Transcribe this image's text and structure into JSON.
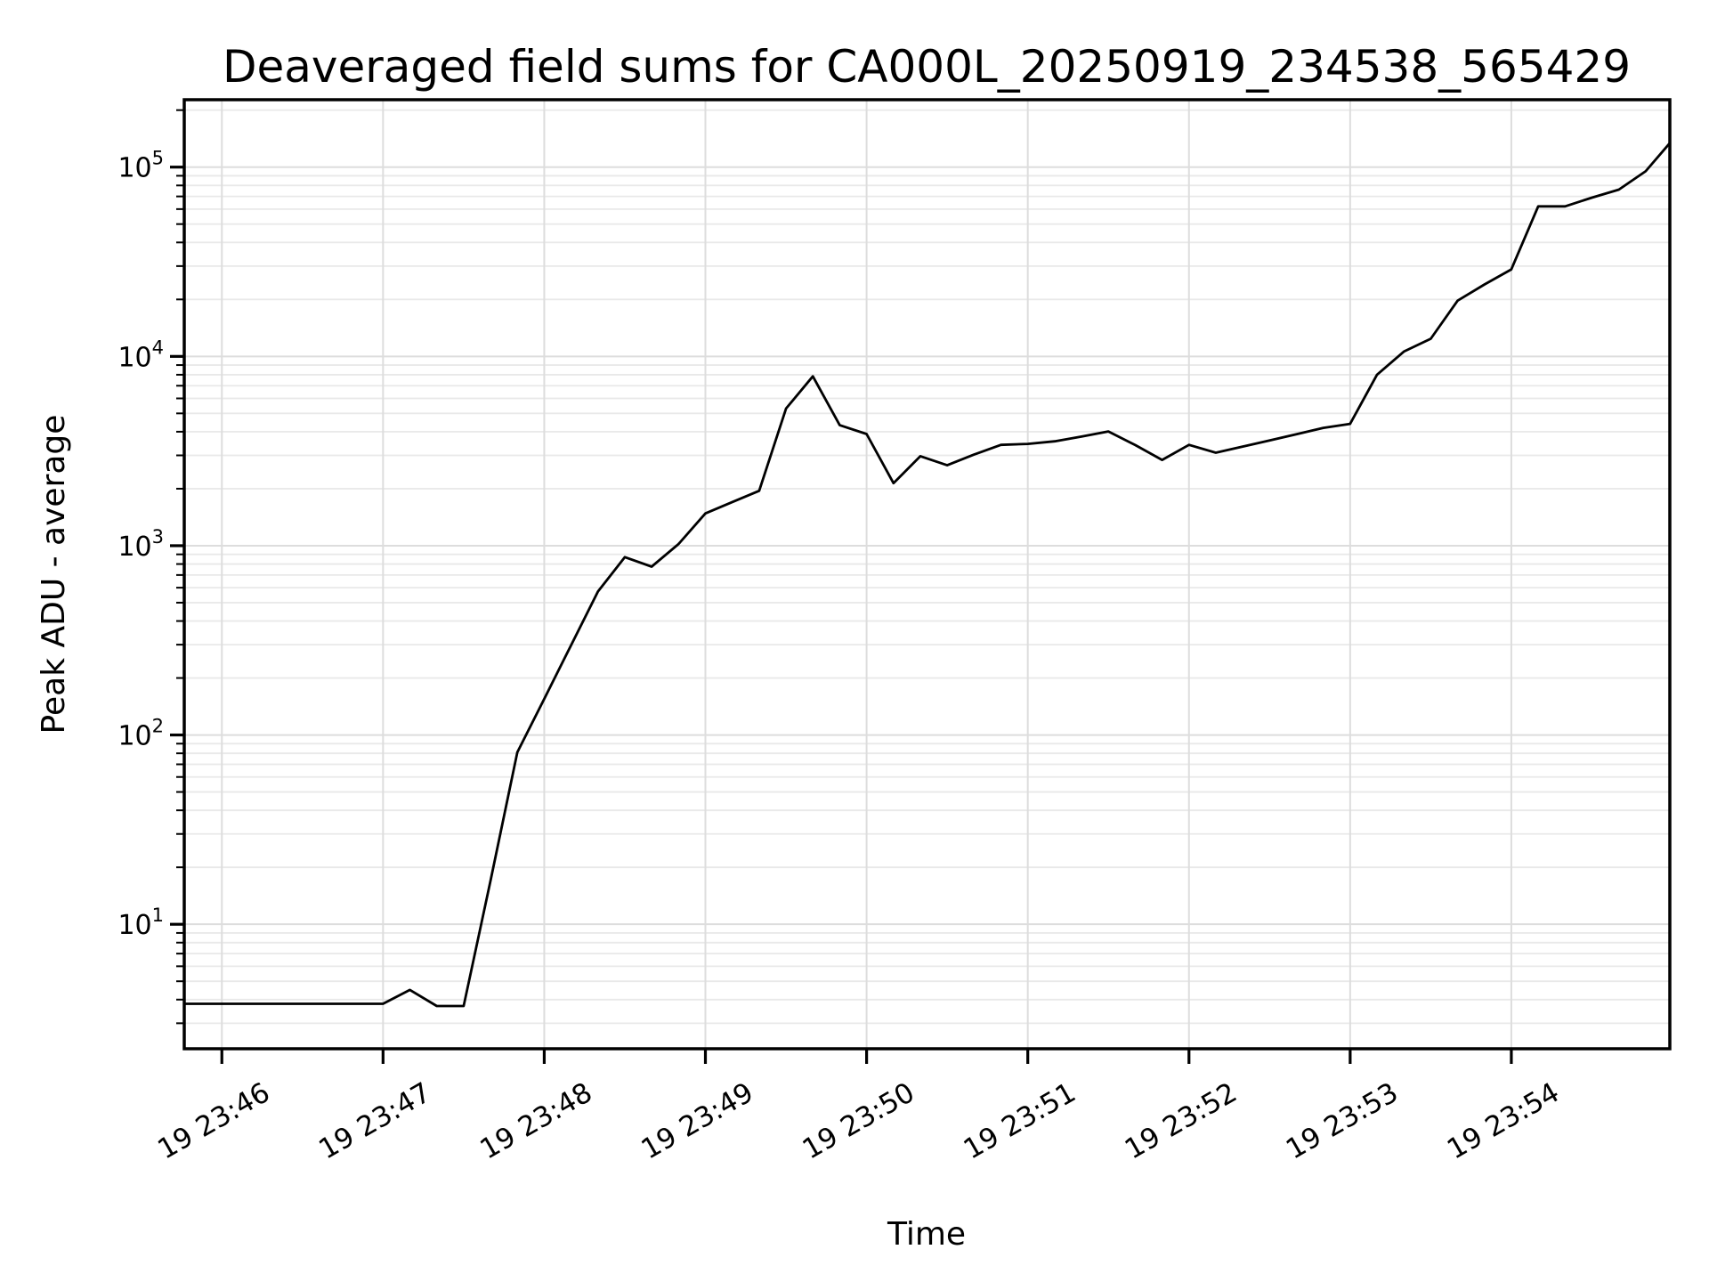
{
  "figure": {
    "background": "#ffffff"
  },
  "chart_data": {
    "type": "line",
    "title": "Deaveraged field sums for CA000L_20250919_234538_565429",
    "xlabel": "Time",
    "ylabel": "Peak ADU - average",
    "x_scale": "time",
    "y_scale": "log",
    "xlim": [
      "23:45:46",
      "23:54:59"
    ],
    "ylim": [
      2.2,
      227000
    ],
    "grid": "both",
    "legend": "none",
    "line_color": "#000000",
    "grid_major_color": "#dddddd",
    "grid_minor_color": "#e9e9e9",
    "x_ticks": [
      {
        "time": "23:46:00",
        "label": "19 23:46"
      },
      {
        "time": "23:47:00",
        "label": "19 23:47"
      },
      {
        "time": "23:48:00",
        "label": "19 23:48"
      },
      {
        "time": "23:49:00",
        "label": "19 23:49"
      },
      {
        "time": "23:50:00",
        "label": "19 23:50"
      },
      {
        "time": "23:51:00",
        "label": "19 23:51"
      },
      {
        "time": "23:52:00",
        "label": "19 23:52"
      },
      {
        "time": "23:53:00",
        "label": "19 23:53"
      },
      {
        "time": "23:54:00",
        "label": "19 23:54"
      }
    ],
    "y_ticks": [
      {
        "value": 10,
        "base": "10",
        "exp": "1"
      },
      {
        "value": 100,
        "base": "10",
        "exp": "2"
      },
      {
        "value": 1000,
        "base": "10",
        "exp": "3"
      },
      {
        "value": 10000,
        "base": "10",
        "exp": "4"
      },
      {
        "value": 100000,
        "base": "10",
        "exp": "5"
      }
    ],
    "points": [
      [
        "23:45:46",
        3.8
      ],
      [
        "23:45:50",
        3.8
      ],
      [
        "23:46:00",
        3.8
      ],
      [
        "23:46:10",
        3.8
      ],
      [
        "23:46:20",
        3.8
      ],
      [
        "23:46:30",
        3.8
      ],
      [
        "23:46:40",
        3.8
      ],
      [
        "23:46:50",
        3.8
      ],
      [
        "23:47:00",
        3.8
      ],
      [
        "23:47:10",
        4.5
      ],
      [
        "23:47:20",
        3.7
      ],
      [
        "23:47:30",
        3.7
      ],
      [
        "23:47:40",
        17
      ],
      [
        "23:47:50",
        81
      ],
      [
        "23:48:00",
        155
      ],
      [
        "23:48:10",
        298
      ],
      [
        "23:48:20",
        573
      ],
      [
        "23:48:30",
        870
      ],
      [
        "23:48:40",
        775
      ],
      [
        "23:48:50",
        1020
      ],
      [
        "23:49:00",
        1480
      ],
      [
        "23:49:10",
        1700
      ],
      [
        "23:49:20",
        1950
      ],
      [
        "23:49:30",
        5300
      ],
      [
        "23:49:40",
        7850
      ],
      [
        "23:49:50",
        4330
      ],
      [
        "23:50:00",
        3890
      ],
      [
        "23:50:10",
        2140
      ],
      [
        "23:50:20",
        2970
      ],
      [
        "23:50:30",
        2660
      ],
      [
        "23:50:40",
        3030
      ],
      [
        "23:50:50",
        3410
      ],
      [
        "23:51:00",
        3450
      ],
      [
        "23:51:10",
        3560
      ],
      [
        "23:51:20",
        3770
      ],
      [
        "23:51:30",
        4015
      ],
      [
        "23:51:40",
        3400
      ],
      [
        "23:51:50",
        2840
      ],
      [
        "23:52:00",
        3410
      ],
      [
        "23:52:10",
        3100
      ],
      [
        "23:52:20",
        3340
      ],
      [
        "23:52:30",
        3600
      ],
      [
        "23:52:40",
        3880
      ],
      [
        "23:52:50",
        4190
      ],
      [
        "23:53:00",
        4400
      ],
      [
        "23:53:10",
        8000
      ],
      [
        "23:53:20",
        10600
      ],
      [
        "23:53:30",
        12400
      ],
      [
        "23:53:40",
        19700
      ],
      [
        "23:53:50",
        24000
      ],
      [
        "23:54:00",
        28800
      ],
      [
        "23:54:10",
        62000
      ],
      [
        "23:54:20",
        62000
      ],
      [
        "23:54:30",
        69000
      ],
      [
        "23:54:40",
        76000
      ],
      [
        "23:54:50",
        95000
      ],
      [
        "23:54:59",
        134000
      ]
    ]
  }
}
